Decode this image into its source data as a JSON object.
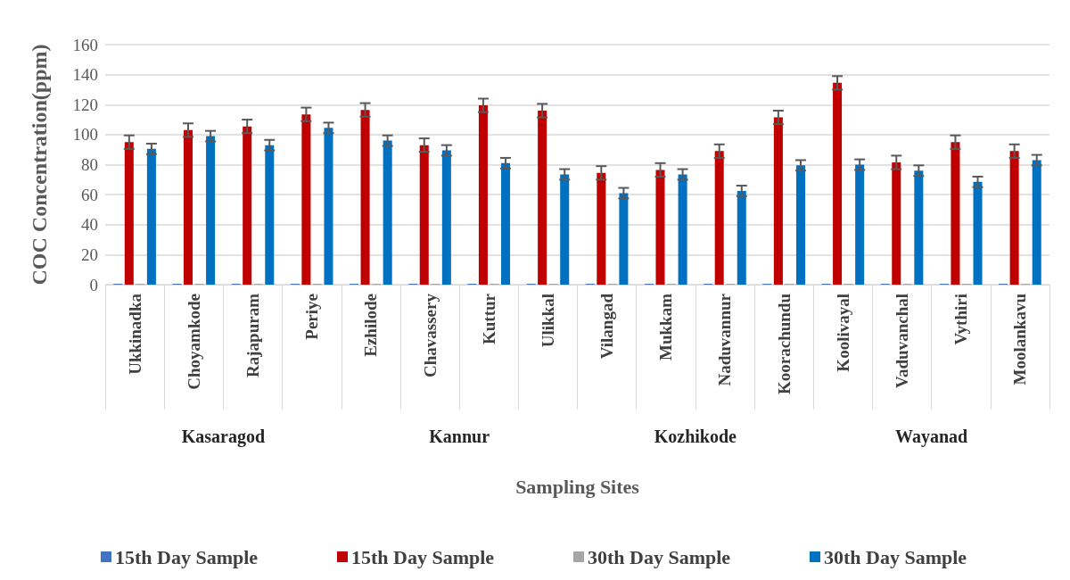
{
  "chart_data": {
    "type": "bar",
    "xlabel": "Sampling Sites",
    "ylabel": "COC Concentration(ppm)",
    "categories": [
      "Ukkinadka",
      "Choyamkode",
      "Rajapuram",
      "Periye",
      "Ezhilode",
      "Chavassery",
      "Kuttur",
      "Ulikkal",
      "Vilangad",
      "Mukkam",
      "Naduvannur",
      "Koorachundu",
      "Koolivayal",
      "Vaduvanchal",
      "Vythiri",
      "Moolankavu"
    ],
    "annotations": [
      "Kasaragod",
      "Kannur",
      "Kozhikode",
      "Wayanad"
    ],
    "series": [
      {
        "name": "15th Day Sample",
        "color": "#4472c4",
        "values": [
          0,
          0,
          0,
          0,
          0,
          0,
          0,
          0,
          0,
          0,
          0,
          0,
          0,
          0,
          0,
          0
        ]
      },
      {
        "name": "15th Day Sample",
        "color": "#c00000",
        "values": [
          95,
          103,
          105.5,
          113.5,
          116.5,
          93,
          119.5,
          116,
          74.5,
          76.5,
          89,
          111.5,
          134.5,
          81.5,
          95,
          89
        ],
        "errors": [
          4.5,
          4.5,
          4.5,
          4.5,
          4.5,
          4.5,
          4.5,
          4.5,
          4.5,
          4.5,
          4.5,
          4.5,
          4.5,
          4.5,
          4.5,
          4.5
        ]
      },
      {
        "name": "30th Day Sample",
        "color": "#a5a5a5",
        "values": [
          0,
          0,
          0,
          0,
          0,
          0,
          0,
          0,
          0,
          0,
          0,
          0,
          0,
          0,
          0,
          0
        ]
      },
      {
        "name": "30th Day Sample",
        "color": "#0070c0",
        "values": [
          90.5,
          99,
          93,
          104.5,
          96,
          89.5,
          81,
          73.5,
          61,
          73.5,
          62.5,
          79.5,
          80,
          76,
          68.5,
          83
        ],
        "errors": [
          3.5,
          3.5,
          3.5,
          3.5,
          3.5,
          3.5,
          3.5,
          3.5,
          3.5,
          3.5,
          3.5,
          3.5,
          3.5,
          3.5,
          3.5,
          3.5
        ]
      }
    ],
    "ylim": [
      0,
      160
    ],
    "yticks": [
      0,
      20,
      40,
      60,
      80,
      100,
      120,
      140,
      160
    ],
    "grid": "y",
    "legend": "bottom"
  }
}
